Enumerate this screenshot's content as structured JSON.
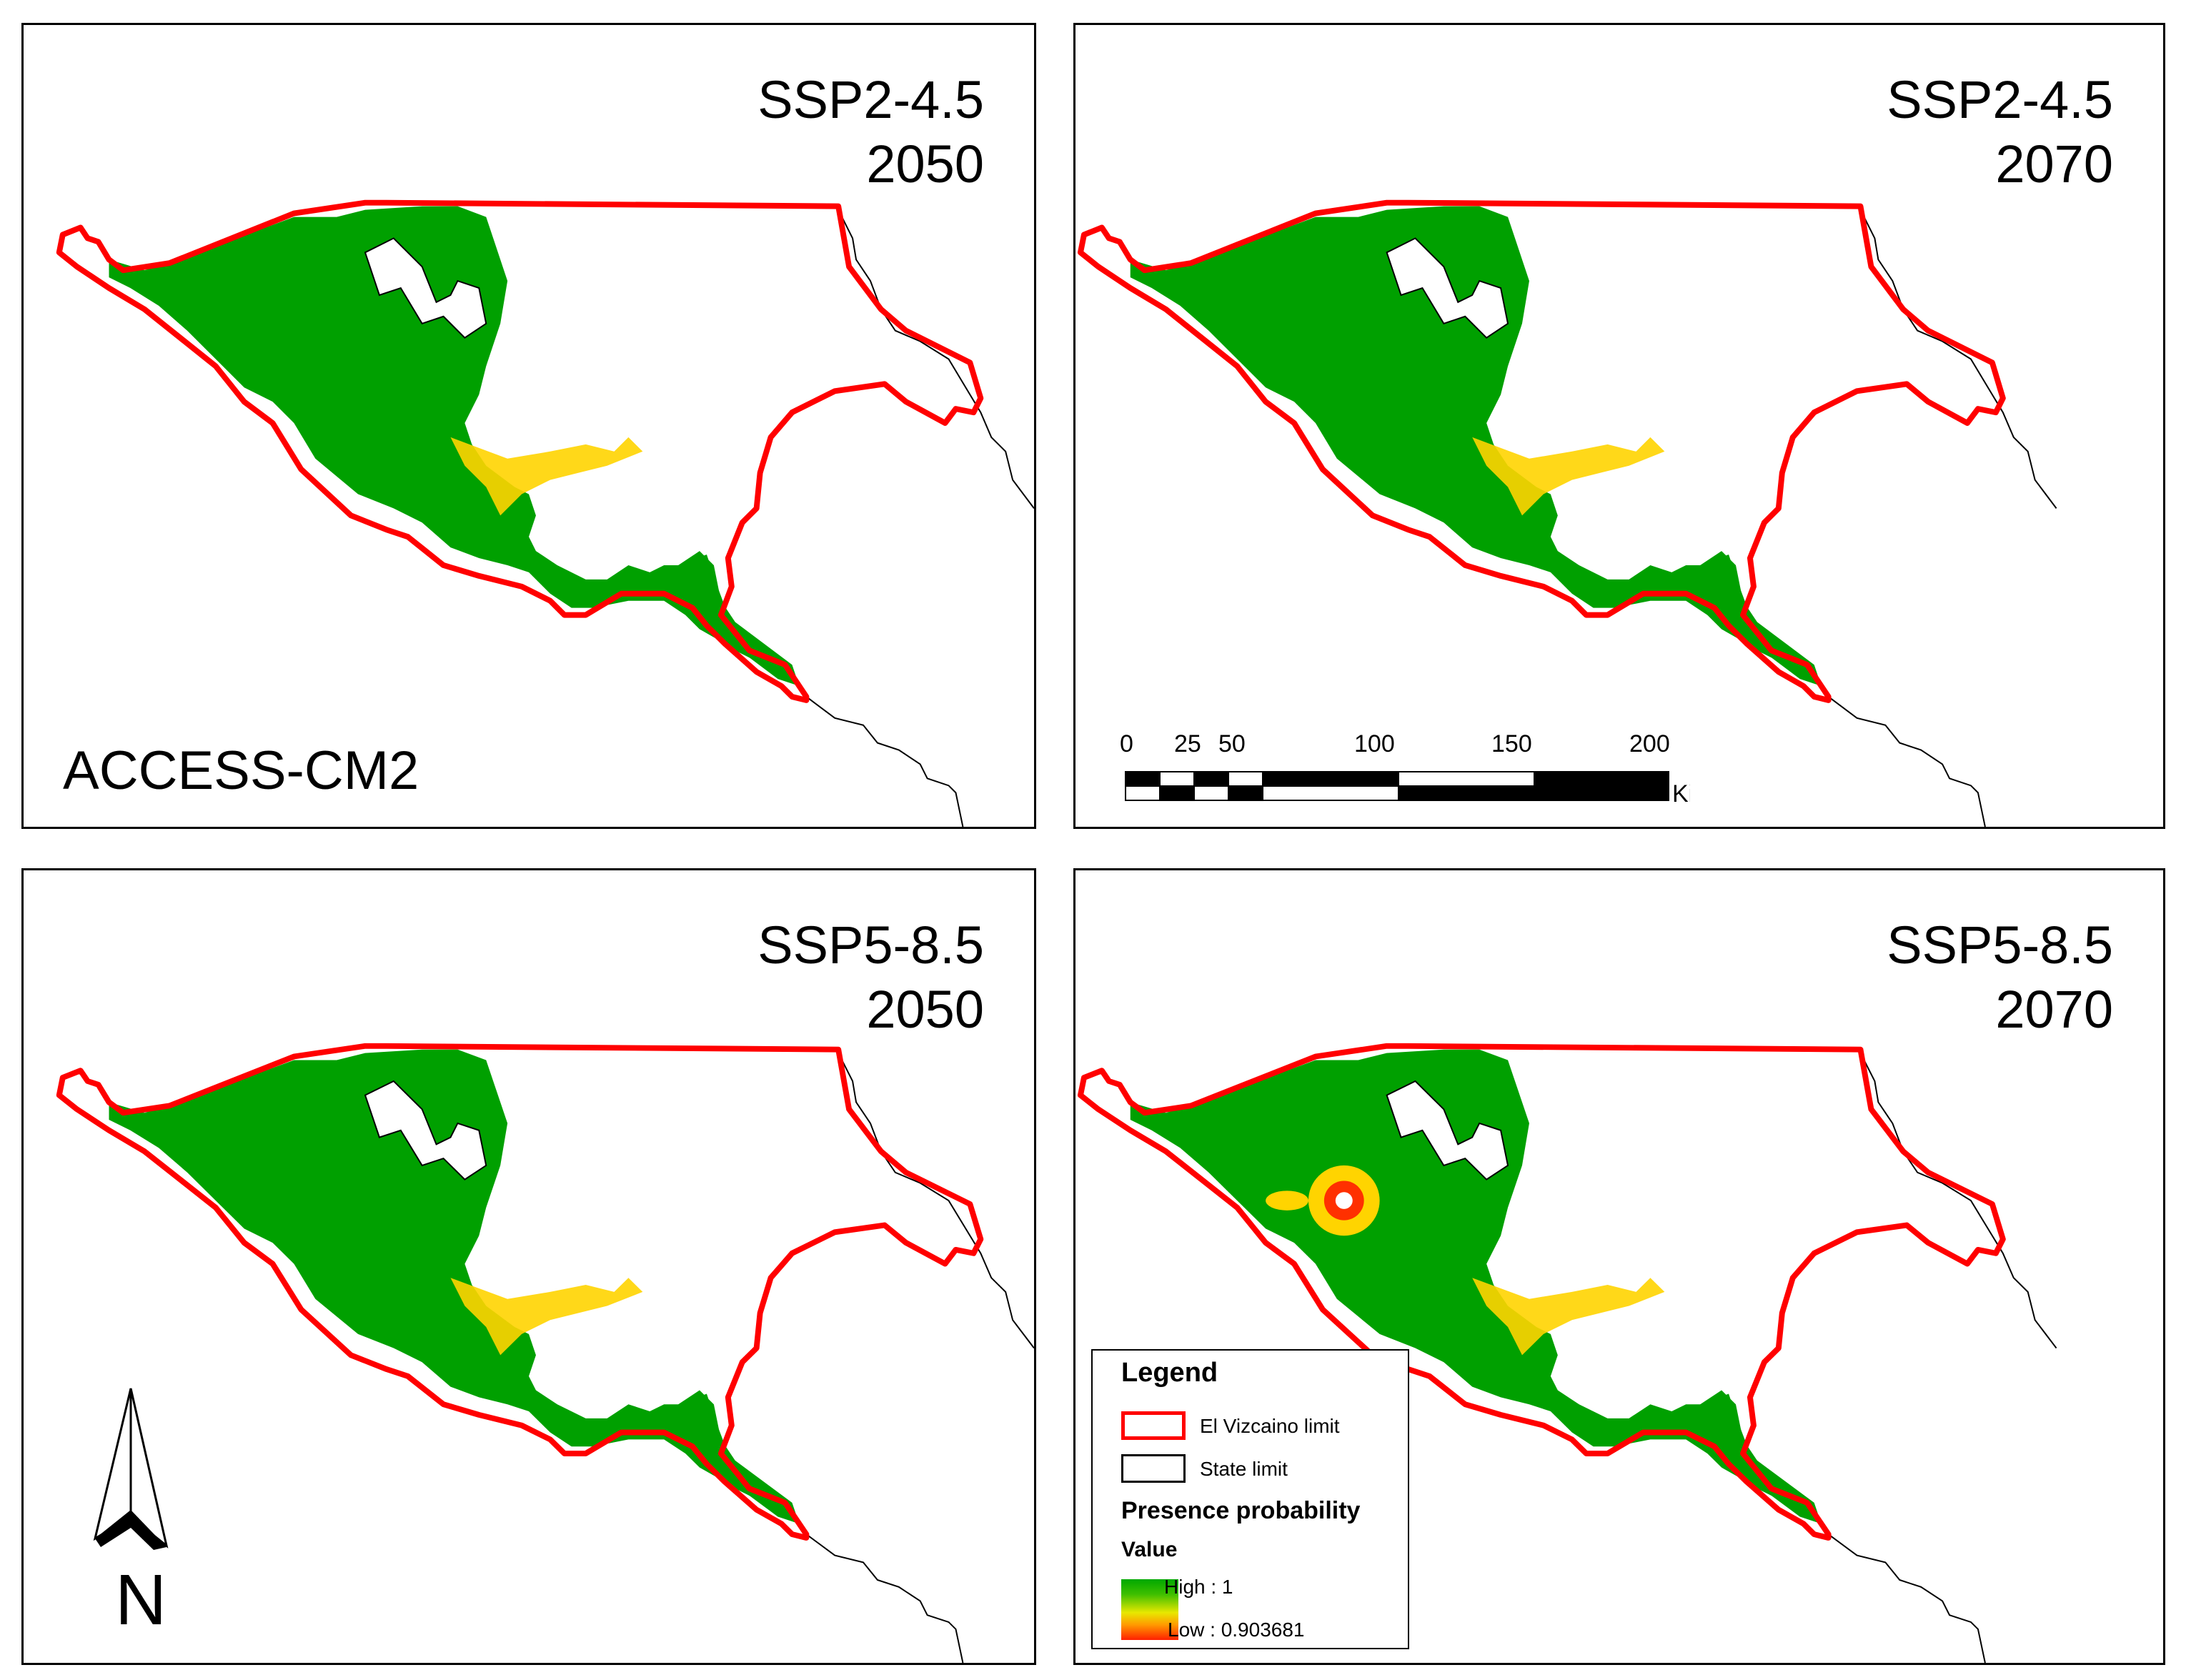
{
  "panels": [
    {
      "id": "p1",
      "scenario": "SSP2-4.5",
      "year": "2050",
      "model": "ACCESS-CM2"
    },
    {
      "id": "p2",
      "scenario": "SSP2-4.5",
      "year": "2070"
    },
    {
      "id": "p3",
      "scenario": "SSP5-8.5",
      "year": "2050"
    },
    {
      "id": "p4",
      "scenario": "SSP5-8.5",
      "year": "2070"
    }
  ],
  "scale_bar": {
    "ticks": [
      "0",
      "25",
      "50",
      "100",
      "150",
      "200"
    ],
    "unit": "Kilometers"
  },
  "north_arrow": {
    "label": "N",
    "icon": "north-arrow-icon"
  },
  "legend": {
    "title": "Legend",
    "items": [
      {
        "label": "El Vizcaino limit",
        "stroke_color": "#ff0000"
      },
      {
        "label": "State limit",
        "stroke_color": "#000000"
      }
    ],
    "raster_title": "Presence probability",
    "value_label": "Value",
    "high": "High : 1",
    "low": "Low : 0.903681",
    "gradient_colors": [
      "#00a800",
      "#e8e800",
      "#ff2000"
    ]
  },
  "colors": {
    "boundary": "#ff0000",
    "habitat": "#00a000",
    "edge": "#ffd400",
    "hot": "#ff3000"
  }
}
